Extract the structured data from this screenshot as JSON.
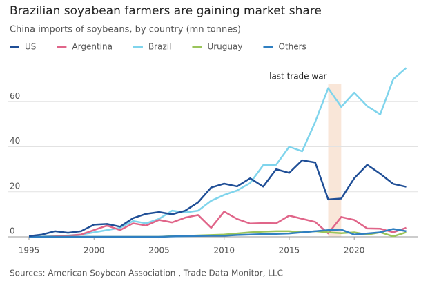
{
  "chart_data": {
    "type": "line",
    "title": "Brazilian soyabean farmers are gaining market share",
    "subtitle": "China imports of soybeans, by country (mn tonnes)",
    "source": "Sources: American Soybean Association , Trade Data Monitor, LLC",
    "x": [
      1995,
      1996,
      1997,
      1998,
      1999,
      2000,
      2001,
      2002,
      2003,
      2004,
      2005,
      2006,
      2007,
      2008,
      2009,
      2010,
      2011,
      2012,
      2013,
      2014,
      2015,
      2016,
      2017,
      2018,
      2019,
      2020,
      2021,
      2022,
      2023,
      2024
    ],
    "series": [
      {
        "name": "US",
        "color": "#1f4e96",
        "values": [
          0.3,
          1,
          2.5,
          1.8,
          2.5,
          5.4,
          5.7,
          4.5,
          8.3,
          10.2,
          11,
          10,
          11.6,
          15.3,
          21.9,
          23.6,
          22.4,
          26,
          22.3,
          30,
          28.4,
          34,
          33,
          16.6,
          17,
          26,
          32,
          28,
          23.5,
          22.2
        ]
      },
      {
        "name": "Argentina",
        "color": "#e06589",
        "values": [
          0,
          0,
          0.2,
          0.5,
          1,
          3,
          5,
          3,
          6,
          5,
          7.5,
          6.4,
          8.5,
          9.7,
          4,
          11.2,
          7.9,
          5.9,
          6.1,
          6,
          9.4,
          8,
          6.6,
          1.5,
          8.8,
          7.5,
          3.7,
          3.6,
          2,
          4
        ]
      },
      {
        "name": "Brazil",
        "color": "#7fd4ec",
        "values": [
          0,
          0.1,
          0.3,
          0.6,
          1,
          2,
          3,
          4,
          7,
          6,
          8,
          11.6,
          10.8,
          11.6,
          16,
          18.6,
          20.6,
          23.9,
          31.8,
          32,
          40,
          38,
          51,
          66,
          57.7,
          64,
          58,
          54.4,
          70,
          75
        ]
      },
      {
        "name": "Uruguay",
        "color": "#9ac45a",
        "values": [
          0,
          0,
          0,
          0,
          0,
          0,
          0,
          0,
          0,
          0,
          0,
          0.3,
          0.4,
          0.6,
          0.8,
          1,
          1.5,
          2,
          2.3,
          2.5,
          2.5,
          2,
          2.5,
          2,
          1.6,
          2,
          1,
          2,
          0.2,
          2
        ]
      },
      {
        "name": "Others",
        "color": "#2f7fc1",
        "values": [
          0,
          0,
          0,
          0,
          0,
          0,
          0,
          0,
          0,
          0,
          0,
          0.2,
          0.3,
          0.4,
          0.5,
          0.5,
          0.8,
          1,
          1.2,
          1.3,
          1.5,
          2,
          2.5,
          3,
          3.2,
          1,
          1.5,
          2,
          3.5,
          2.5
        ]
      }
    ],
    "shaded": {
      "label": "last trade war",
      "x": [
        2018,
        2019
      ]
    },
    "xlim": [
      1995,
      2024.5
    ],
    "xticks": [
      1995,
      2000,
      2005,
      2010,
      2015,
      2020
    ],
    "ylim": [
      0,
      80
    ],
    "yticks": [
      0,
      20,
      40,
      60
    ],
    "grid": true
  }
}
